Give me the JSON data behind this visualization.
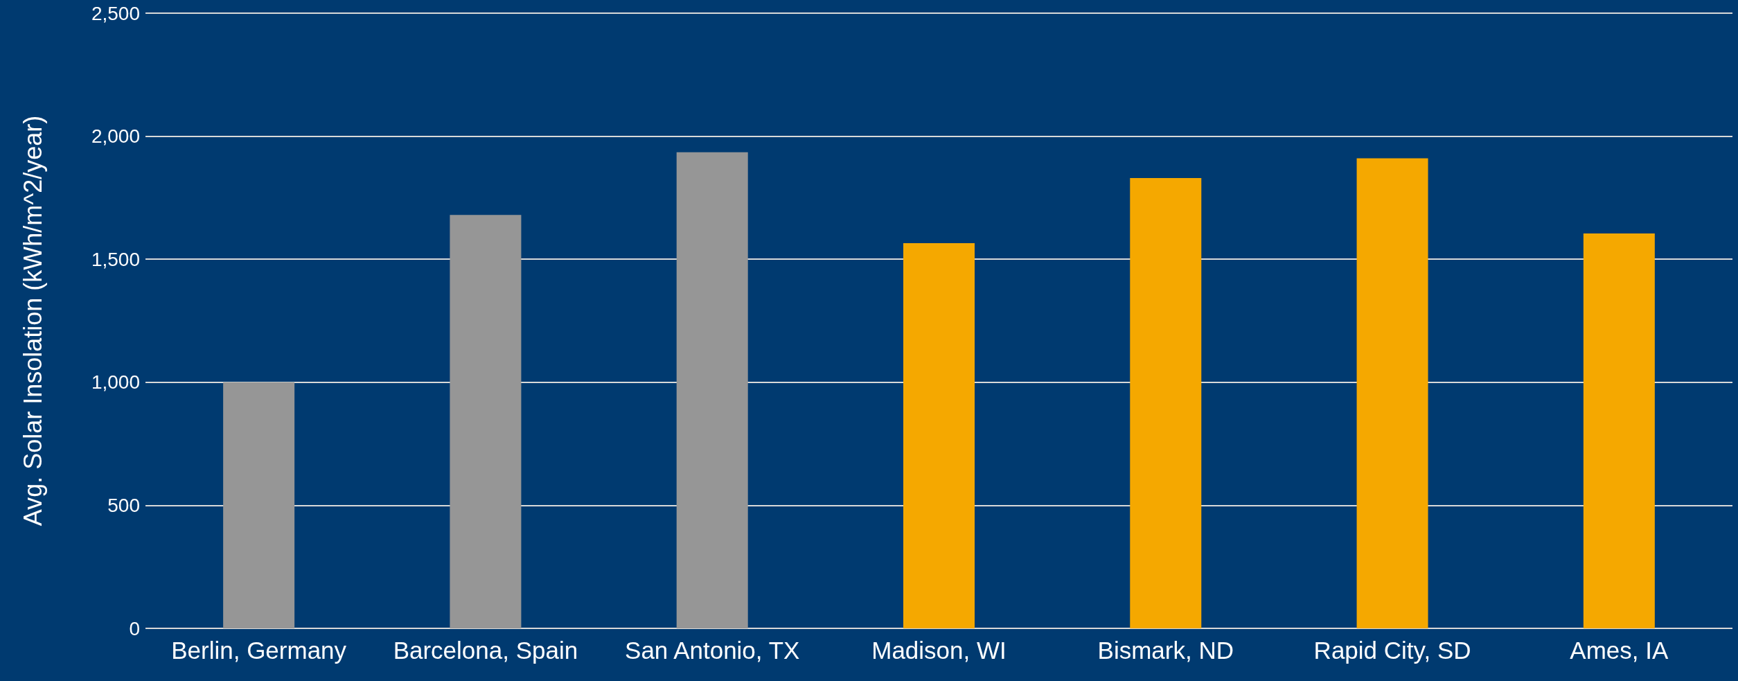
{
  "chart_data": {
    "type": "bar",
    "ylabel": "Avg. Solar Insolation (kWh/m^2/year)",
    "categories": [
      "Berlin, Germany",
      "Barcelona, Spain",
      "San Antonio, TX",
      "Madison, WI",
      "Bismark, ND",
      "Rapid City, SD",
      "Ames, IA"
    ],
    "values": [
      1000,
      1680,
      1935,
      1565,
      1830,
      1910,
      1605
    ],
    "colors": [
      "#969696",
      "#969696",
      "#969696",
      "#f5a800",
      "#f5a800",
      "#f5a800",
      "#f5a800"
    ],
    "ylim": [
      0,
      2500
    ],
    "yticks": [
      {
        "value": 0,
        "label": "0"
      },
      {
        "value": 500,
        "label": "500"
      },
      {
        "value": 1000,
        "label": "1,000"
      },
      {
        "value": 1500,
        "label": "1,500"
      },
      {
        "value": 2000,
        "label": "2,000"
      },
      {
        "value": 2500,
        "label": "2,500"
      }
    ],
    "grid": true
  }
}
